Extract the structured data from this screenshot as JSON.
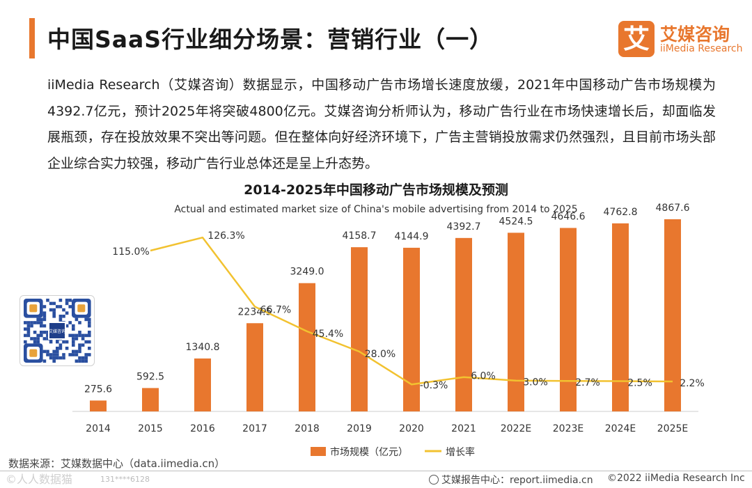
{
  "header": {
    "title": "中国SaaS行业细分场景：营销行业（一）",
    "logo_mark": "艾",
    "logo_cn": "艾媒咨询",
    "logo_en": "iiMedia Research"
  },
  "intro": {
    "text": "iiMedia Research（艾媒咨询）数据显示，中国移动广告市场增长速度放缓，2021年中国移动广告市场规模为4392.7亿元，预计2025年将突破4800亿元。艾媒咨询分析师认为，移动广告行业在市场快速增长后，却面临发展瓶颈，存在投放效果不突出等问题。但在整体向好经济环境下，广告主营销投放需求仍然强烈，且目前市场头部企业综合实力较强，移动广告行业总体还是呈上升态势。"
  },
  "qr": {
    "center_text": "艾媒咨询"
  },
  "chart_data": {
    "type": "bar",
    "title": "2014-2025年中国移动广告市场规模及预测",
    "subtitle": "Actual and estimated market size of China's mobile advertising from 2014 to 2025",
    "categories": [
      "2014",
      "2015",
      "2016",
      "2017",
      "2018",
      "2019",
      "2020",
      "2021",
      "2022E",
      "2023E",
      "2024E",
      "2025E"
    ],
    "series": [
      {
        "name": "市场规模（亿元）",
        "type": "bar",
        "color": "#e8772e",
        "values": [
          275.6,
          592.5,
          1340.8,
          2234.5,
          3249.0,
          4158.7,
          4144.9,
          4392.7,
          4524.5,
          4646.6,
          4762.8,
          4867.6
        ],
        "labels": [
          "275.6",
          "592.5",
          "1340.8",
          "2234.5",
          "3249.0",
          "4158.7",
          "4144.9",
          "4392.7",
          "4524.5",
          "4646.6",
          "4762.8",
          "4867.6"
        ]
      },
      {
        "name": "增长率",
        "type": "line",
        "color": "#f2c230",
        "values": [
          null,
          115.0,
          126.3,
          66.7,
          45.4,
          28.0,
          -0.3,
          6.0,
          3.0,
          2.7,
          2.5,
          2.2
        ],
        "labels": [
          "",
          "115.0%",
          "126.3%",
          "66.7%",
          "45.4%",
          "28.0%",
          "-0.3%",
          "6.0%",
          "3.0%",
          "2.7%",
          "2.5%",
          "2.2%"
        ]
      }
    ],
    "bar_ylim": [
      0,
      6100
    ],
    "line_ylim": [
      -5,
      133
    ],
    "legend": "bottom-center",
    "grid": false
  },
  "footer": {
    "source": "数据来源：艾媒数据中心（data.iimedia.cn）",
    "watermark": "©人人数据猫",
    "watermark_id": "131****6128",
    "report_site": "艾媒报告中心：report.iimedia.cn",
    "copyright": "©2022 iiMedia Research Inc"
  }
}
